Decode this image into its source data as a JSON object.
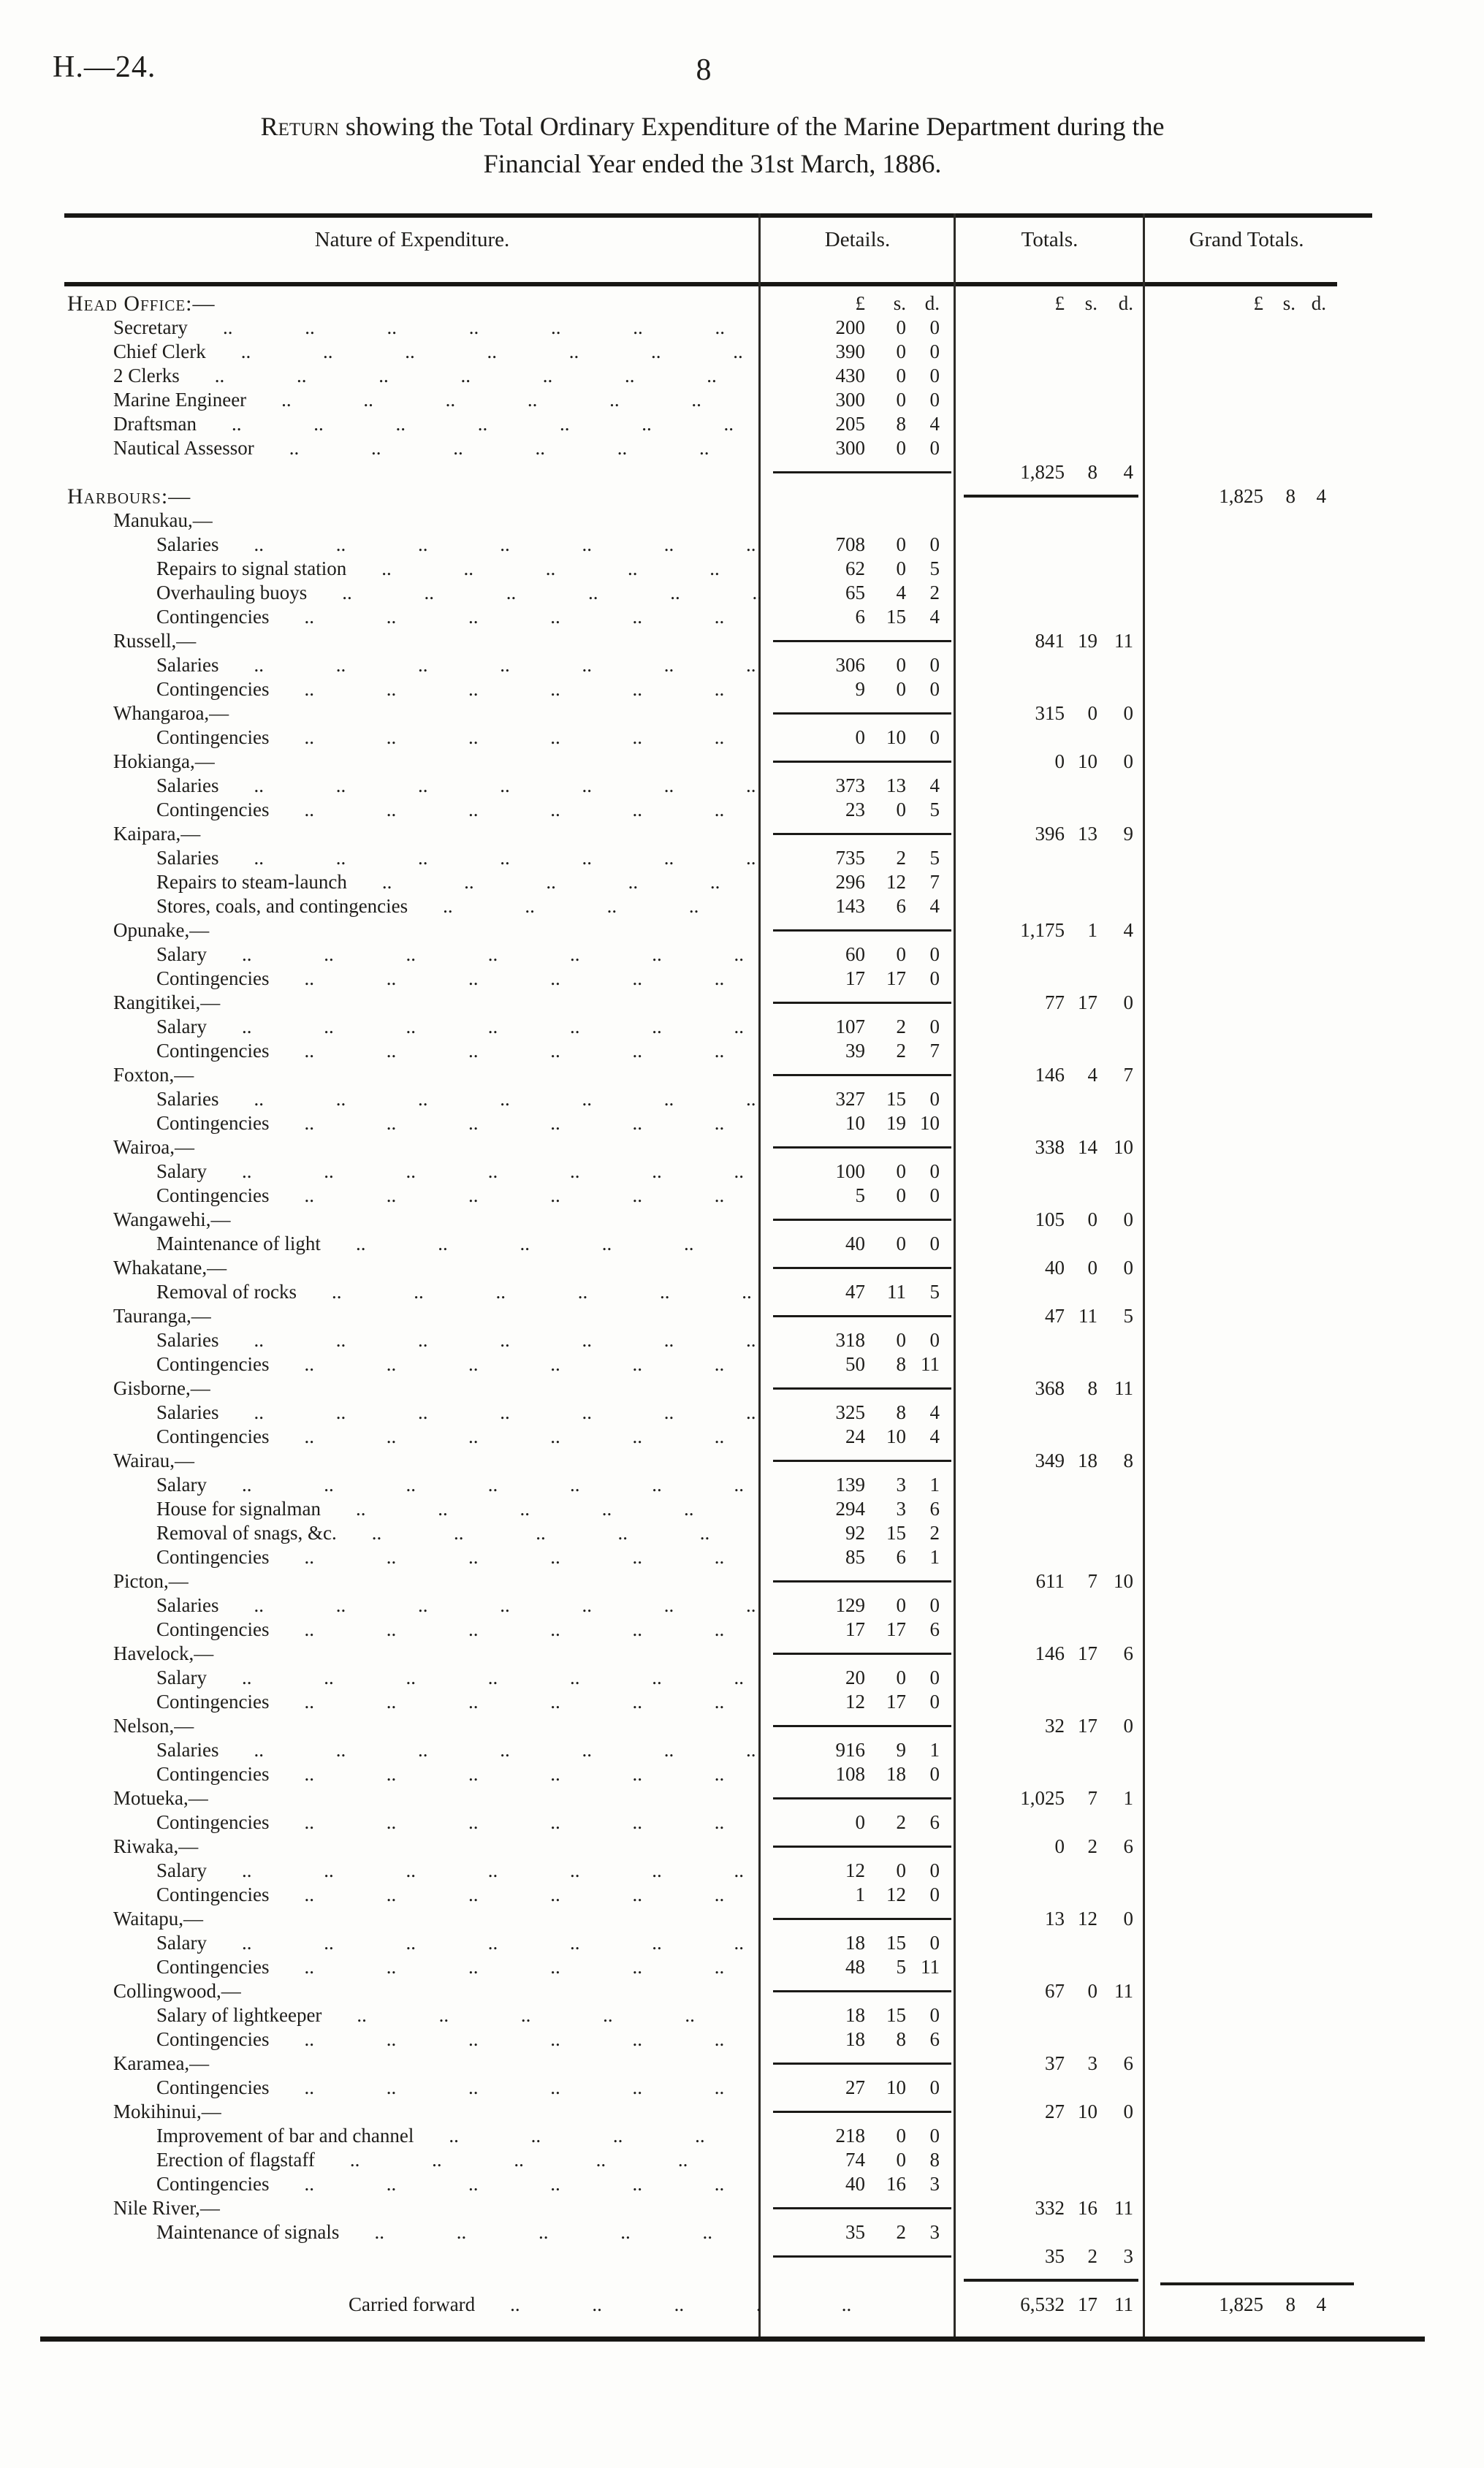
{
  "header": {
    "doc_ref": "H.—24.",
    "page_number": "8"
  },
  "title": {
    "lead": "Return",
    "rest": " showing the Total Ordinary Expenditure of the Marine Department during the",
    "line2": "Financial Year ended the 31st March, 1886."
  },
  "table": {
    "columns": {
      "nature": "Nature of Expenditure.",
      "details": "Details.",
      "totals": "Totals.",
      "grand": "Grand Totals."
    },
    "money_header": {
      "pounds": "£",
      "shillings": "s.",
      "pence": "d."
    },
    "leader_dots": ".. .. .. .. .. .. .. .. .. ..",
    "carried_dots": "..",
    "rows": [
      {
        "t": "caps",
        "label": "Head Office:—",
        "sdh": true
      },
      {
        "t": "item",
        "ind": 1,
        "label": "Secretary",
        "det": [
          "200",
          "0",
          "0"
        ]
      },
      {
        "t": "item",
        "ind": 1,
        "label": "Chief Clerk",
        "det": [
          "390",
          "0",
          "0"
        ]
      },
      {
        "t": "item",
        "ind": 1,
        "label": "2 Clerks",
        "det": [
          "430",
          "0",
          "0"
        ]
      },
      {
        "t": "item",
        "ind": 1,
        "label": "Marine Engineer",
        "det": [
          "300",
          "0",
          "0"
        ]
      },
      {
        "t": "item",
        "ind": 1,
        "label": "Draftsman",
        "det": [
          "205",
          "8",
          "4"
        ]
      },
      {
        "t": "item",
        "ind": 1,
        "label": "Nautical Assessor",
        "det": [
          "300",
          "0",
          "0"
        ]
      },
      {
        "t": "sum",
        "drule": true,
        "tot": [
          "1,825",
          "8",
          "4"
        ]
      },
      {
        "t": "caps",
        "label": "Harbours:—",
        "trule": true,
        "grand": [
          "1,825",
          "8",
          "4"
        ]
      },
      {
        "t": "sub",
        "label": "Manukau,—"
      },
      {
        "t": "item",
        "ind": 2,
        "label": "Salaries",
        "det": [
          "708",
          "0",
          "0"
        ]
      },
      {
        "t": "item",
        "ind": 2,
        "label": "Repairs to signal station",
        "det": [
          "62",
          "0",
          "5"
        ]
      },
      {
        "t": "item",
        "ind": 2,
        "label": "Overhauling buoys",
        "det": [
          "65",
          "4",
          "2"
        ]
      },
      {
        "t": "item",
        "ind": 2,
        "label": "Contingencies",
        "det": [
          "6",
          "15",
          "4"
        ]
      },
      {
        "t": "sub",
        "label": "Russell,—",
        "drule": true,
        "tot": [
          "841",
          "19",
          "11"
        ]
      },
      {
        "t": "item",
        "ind": 2,
        "label": "Salaries",
        "det": [
          "306",
          "0",
          "0"
        ]
      },
      {
        "t": "item",
        "ind": 2,
        "label": "Contingencies",
        "det": [
          "9",
          "0",
          "0"
        ]
      },
      {
        "t": "sub",
        "label": "Whangaroa,—",
        "drule": true,
        "tot": [
          "315",
          "0",
          "0"
        ]
      },
      {
        "t": "item",
        "ind": 2,
        "label": "Contingencies",
        "det": [
          "0",
          "10",
          "0"
        ]
      },
      {
        "t": "sub",
        "label": "Hokianga,—",
        "drule": true,
        "tot": [
          "0",
          "10",
          "0"
        ]
      },
      {
        "t": "item",
        "ind": 2,
        "label": "Salaries",
        "det": [
          "373",
          "13",
          "4"
        ]
      },
      {
        "t": "item",
        "ind": 2,
        "label": "Contingencies",
        "det": [
          "23",
          "0",
          "5"
        ]
      },
      {
        "t": "sub",
        "label": "Kaipara,—",
        "drule": true,
        "tot": [
          "396",
          "13",
          "9"
        ]
      },
      {
        "t": "item",
        "ind": 2,
        "label": "Salaries",
        "det": [
          "735",
          "2",
          "5"
        ]
      },
      {
        "t": "item",
        "ind": 2,
        "label": "Repairs to steam-launch",
        "det": [
          "296",
          "12",
          "7"
        ]
      },
      {
        "t": "item",
        "ind": 2,
        "label": "Stores, coals, and contingencies",
        "det": [
          "143",
          "6",
          "4"
        ]
      },
      {
        "t": "sub",
        "label": "Opunake,—",
        "drule": true,
        "tot": [
          "1,175",
          "1",
          "4"
        ]
      },
      {
        "t": "item",
        "ind": 2,
        "label": "Salary",
        "det": [
          "60",
          "0",
          "0"
        ]
      },
      {
        "t": "item",
        "ind": 2,
        "label": "Contingencies",
        "det": [
          "17",
          "17",
          "0"
        ]
      },
      {
        "t": "sub",
        "label": "Rangitikei,—",
        "drule": true,
        "tot": [
          "77",
          "17",
          "0"
        ]
      },
      {
        "t": "item",
        "ind": 2,
        "label": "Salary",
        "det": [
          "107",
          "2",
          "0"
        ]
      },
      {
        "t": "item",
        "ind": 2,
        "label": "Contingencies",
        "det": [
          "39",
          "2",
          "7"
        ]
      },
      {
        "t": "sub",
        "label": "Foxton,—",
        "drule": true,
        "tot": [
          "146",
          "4",
          "7"
        ]
      },
      {
        "t": "item",
        "ind": 2,
        "label": "Salaries",
        "det": [
          "327",
          "15",
          "0"
        ]
      },
      {
        "t": "item",
        "ind": 2,
        "label": "Contingencies",
        "det": [
          "10",
          "19",
          "10"
        ]
      },
      {
        "t": "sub",
        "label": "Wairoa,—",
        "drule": true,
        "tot": [
          "338",
          "14",
          "10"
        ]
      },
      {
        "t": "item",
        "ind": 2,
        "label": "Salary",
        "det": [
          "100",
          "0",
          "0"
        ]
      },
      {
        "t": "item",
        "ind": 2,
        "label": "Contingencies",
        "det": [
          "5",
          "0",
          "0"
        ]
      },
      {
        "t": "sub",
        "label": "Wangawehi,—",
        "drule": true,
        "tot": [
          "105",
          "0",
          "0"
        ]
      },
      {
        "t": "item",
        "ind": 2,
        "label": "Maintenance of light",
        "det": [
          "40",
          "0",
          "0"
        ]
      },
      {
        "t": "sub",
        "label": "Whakatane,—",
        "drule": true,
        "tot": [
          "40",
          "0",
          "0"
        ]
      },
      {
        "t": "item",
        "ind": 2,
        "label": "Removal of rocks",
        "det": [
          "47",
          "11",
          "5"
        ]
      },
      {
        "t": "sub",
        "label": "Tauranga,—",
        "drule": true,
        "tot": [
          "47",
          "11",
          "5"
        ]
      },
      {
        "t": "item",
        "ind": 2,
        "label": "Salaries",
        "det": [
          "318",
          "0",
          "0"
        ]
      },
      {
        "t": "item",
        "ind": 2,
        "label": "Contingencies",
        "det": [
          "50",
          "8",
          "11"
        ]
      },
      {
        "t": "sub",
        "label": "Gisborne,—",
        "drule": true,
        "tot": [
          "368",
          "8",
          "11"
        ]
      },
      {
        "t": "item",
        "ind": 2,
        "label": "Salaries",
        "det": [
          "325",
          "8",
          "4"
        ]
      },
      {
        "t": "item",
        "ind": 2,
        "label": "Contingencies",
        "det": [
          "24",
          "10",
          "4"
        ]
      },
      {
        "t": "sub",
        "label": "Wairau,—",
        "drule": true,
        "tot": [
          "349",
          "18",
          "8"
        ]
      },
      {
        "t": "item",
        "ind": 2,
        "label": "Salary",
        "det": [
          "139",
          "3",
          "1"
        ]
      },
      {
        "t": "item",
        "ind": 2,
        "label": "House for signalman",
        "det": [
          "294",
          "3",
          "6"
        ]
      },
      {
        "t": "item",
        "ind": 2,
        "label": "Removal of snags, &c.",
        "det": [
          "92",
          "15",
          "2"
        ]
      },
      {
        "t": "item",
        "ind": 2,
        "label": "Contingencies",
        "det": [
          "85",
          "6",
          "1"
        ]
      },
      {
        "t": "sub",
        "label": "Picton,—",
        "drule": true,
        "tot": [
          "611",
          "7",
          "10"
        ]
      },
      {
        "t": "item",
        "ind": 2,
        "label": "Salaries",
        "det": [
          "129",
          "0",
          "0"
        ]
      },
      {
        "t": "item",
        "ind": 2,
        "label": "Contingencies",
        "det": [
          "17",
          "17",
          "6"
        ]
      },
      {
        "t": "sub",
        "label": "Havelock,—",
        "drule": true,
        "tot": [
          "146",
          "17",
          "6"
        ]
      },
      {
        "t": "item",
        "ind": 2,
        "label": "Salary",
        "det": [
          "20",
          "0",
          "0"
        ]
      },
      {
        "t": "item",
        "ind": 2,
        "label": "Contingencies",
        "det": [
          "12",
          "17",
          "0"
        ]
      },
      {
        "t": "sub",
        "label": "Nelson,—",
        "drule": true,
        "tot": [
          "32",
          "17",
          "0"
        ]
      },
      {
        "t": "item",
        "ind": 2,
        "label": "Salaries",
        "det": [
          "916",
          "9",
          "1"
        ]
      },
      {
        "t": "item",
        "ind": 2,
        "label": "Contingencies",
        "det": [
          "108",
          "18",
          "0"
        ]
      },
      {
        "t": "sub",
        "label": "Motueka,—",
        "drule": true,
        "tot": [
          "1,025",
          "7",
          "1"
        ]
      },
      {
        "t": "item",
        "ind": 2,
        "label": "Contingencies",
        "det": [
          "0",
          "2",
          "6"
        ]
      },
      {
        "t": "sub",
        "label": "Riwaka,—",
        "drule": true,
        "tot": [
          "0",
          "2",
          "6"
        ]
      },
      {
        "t": "item",
        "ind": 2,
        "label": "Salary",
        "det": [
          "12",
          "0",
          "0"
        ]
      },
      {
        "t": "item",
        "ind": 2,
        "label": "Contingencies",
        "det": [
          "1",
          "12",
          "0"
        ]
      },
      {
        "t": "sub",
        "label": "Waitapu,—",
        "drule": true,
        "tot": [
          "13",
          "12",
          "0"
        ]
      },
      {
        "t": "item",
        "ind": 2,
        "label": "Salary",
        "det": [
          "18",
          "15",
          "0"
        ]
      },
      {
        "t": "item",
        "ind": 2,
        "label": "Contingencies",
        "det": [
          "48",
          "5",
          "11"
        ]
      },
      {
        "t": "sub",
        "label": "Collingwood,—",
        "drule": true,
        "tot": [
          "67",
          "0",
          "11"
        ]
      },
      {
        "t": "item",
        "ind": 2,
        "label": "Salary of lightkeeper",
        "det": [
          "18",
          "15",
          "0"
        ]
      },
      {
        "t": "item",
        "ind": 2,
        "label": "Contingencies",
        "det": [
          "18",
          "8",
          "6"
        ]
      },
      {
        "t": "sub",
        "label": "Karamea,—",
        "drule": true,
        "tot": [
          "37",
          "3",
          "6"
        ]
      },
      {
        "t": "item",
        "ind": 2,
        "label": "Contingencies",
        "det": [
          "27",
          "10",
          "0"
        ]
      },
      {
        "t": "sub",
        "label": "Mokihinui,—",
        "drule": true,
        "tot": [
          "27",
          "10",
          "0"
        ]
      },
      {
        "t": "item",
        "ind": 2,
        "label": "Improvement of bar and channel",
        "det": [
          "218",
          "0",
          "0"
        ]
      },
      {
        "t": "item",
        "ind": 2,
        "label": "Erection of flagstaff",
        "det": [
          "74",
          "0",
          "8"
        ]
      },
      {
        "t": "item",
        "ind": 2,
        "label": "Contingencies",
        "det": [
          "40",
          "16",
          "3"
        ]
      },
      {
        "t": "sub",
        "label": "Nile River,—",
        "drule": true,
        "tot": [
          "332",
          "16",
          "11"
        ]
      },
      {
        "t": "item",
        "ind": 2,
        "label": "Maintenance of signals",
        "det": [
          "35",
          "2",
          "3"
        ]
      },
      {
        "t": "sum",
        "drule": true,
        "tot": [
          "35",
          "2",
          "3"
        ]
      },
      {
        "t": "rules"
      },
      {
        "t": "carried",
        "label": "Carried forward",
        "tot": [
          "6,532",
          "17",
          "11"
        ],
        "grand": [
          "1,825",
          "8",
          "4"
        ]
      }
    ]
  }
}
